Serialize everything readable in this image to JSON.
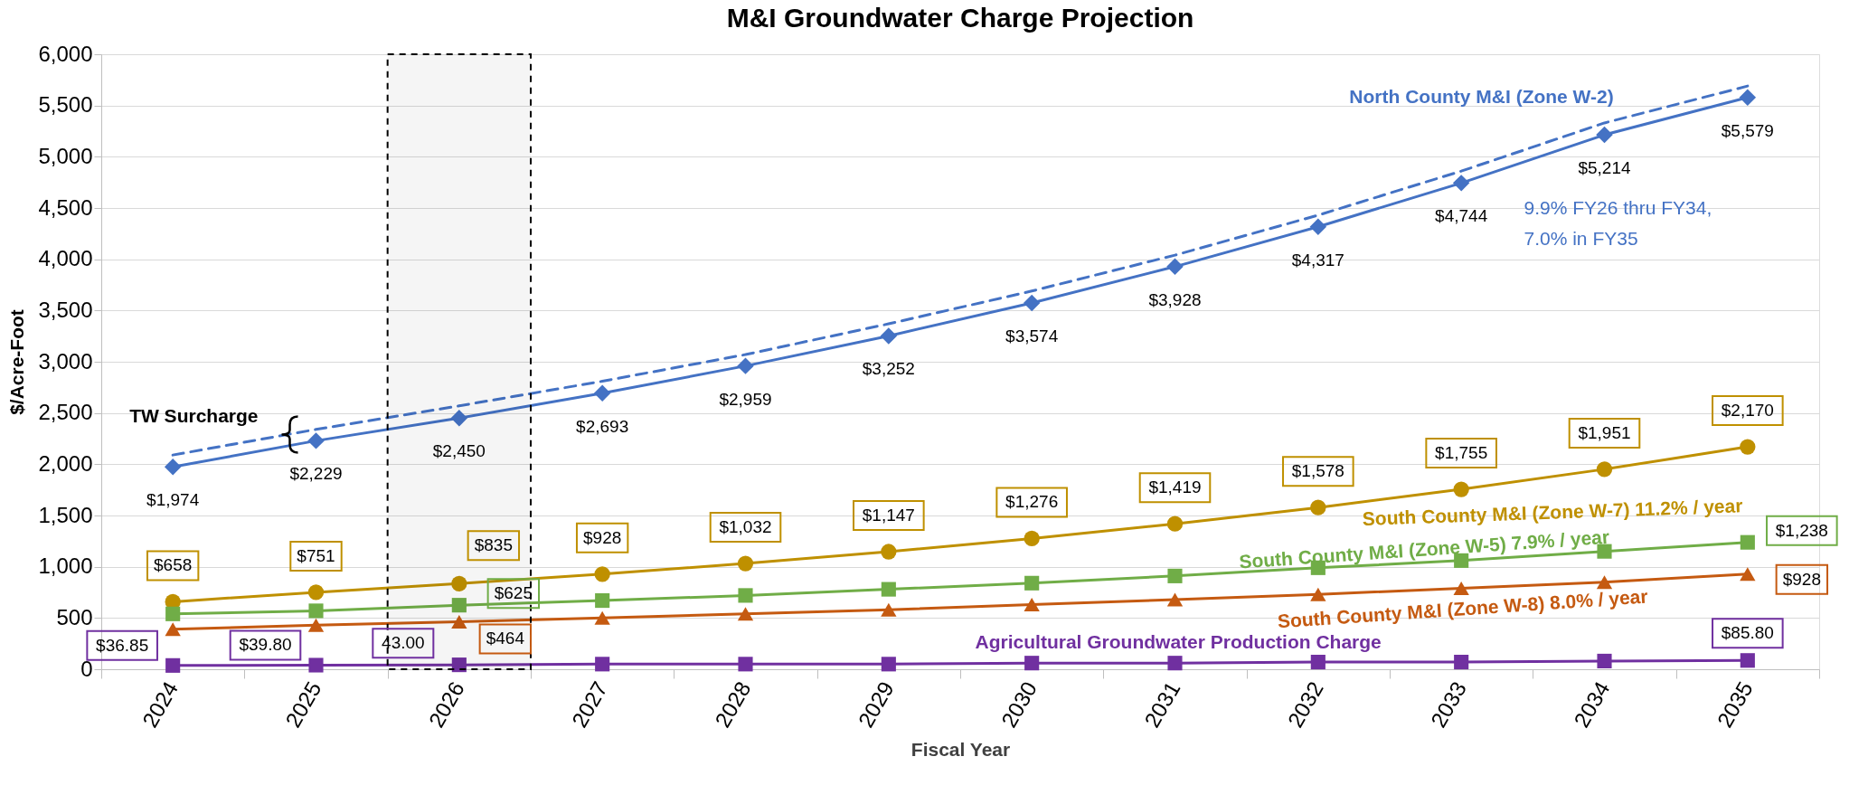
{
  "chart_data": {
    "type": "line",
    "title": "M&I Groundwater Charge Projection",
    "xlabel": "Fiscal Year",
    "ylabel": "$/Acre-Foot",
    "categories": [
      "2024",
      "2025",
      "2026",
      "2027",
      "2028",
      "2029",
      "2030",
      "2031",
      "2032",
      "2033",
      "2034",
      "2035"
    ],
    "ylim": [
      0,
      6000
    ],
    "yticks": [
      0,
      500,
      {
        "value": 1000,
        "label": "1,000"
      },
      {
        "value": 1500,
        "label": "1,500"
      },
      {
        "value": 2000,
        "label": "2,000"
      },
      {
        "value": 2500,
        "label": "2,500"
      },
      {
        "value": 3000,
        "label": "3,000"
      },
      {
        "value": 3500,
        "label": "3,500"
      },
      {
        "value": 4000,
        "label": "4,000"
      },
      {
        "value": 4500,
        "label": "4,500"
      },
      {
        "value": 5000,
        "label": "5,000"
      },
      {
        "value": 5500,
        "label": "5,500"
      },
      {
        "value": 6000,
        "label": "6,000"
      }
    ],
    "grid": "y",
    "legend": false,
    "series": [
      {
        "name": "North County M&I (Zone W-2)",
        "color": "#4472c4",
        "marker": "diamond",
        "values": [
          1974,
          2229,
          2450,
          2693,
          2959,
          3252,
          3574,
          3928,
          4317,
          4744,
          5214,
          5579
        ],
        "value_labels": [
          "$1,974",
          "$2,229",
          "$2,450",
          "$2,693",
          "$2,959",
          "$3,252",
          "$3,574",
          "$3,928",
          "$4,317",
          "$4,744",
          "$5,214",
          "$5,579"
        ]
      },
      {
        "color": "#4472c4",
        "marker": "none",
        "line_style": "dashed",
        "values": [
          2090,
          2340,
          2570,
          2810,
          3070,
          3370,
          3690,
          4040,
          4430,
          4860,
          5330,
          5690
        ]
      },
      {
        "name": "South County M&I (Zone W-7) 11.2% / year",
        "color": "#bf9000",
        "marker": "circle",
        "values": [
          658,
          751,
          835,
          928,
          1032,
          1147,
          1276,
          1419,
          1578,
          1755,
          1951,
          2170
        ],
        "value_labels": [
          "$658",
          "$751",
          "$835",
          "$928",
          "$1,032",
          "$1,147",
          "$1,276",
          "$1,419",
          "$1,578",
          "$1,755",
          "$1,951",
          "$2,170"
        ]
      },
      {
        "name": "South County M&I (Zone W-5) 7.9% / year",
        "color": "#70ad47",
        "marker": "square",
        "values": [
          540,
          570,
          625,
          670,
          720,
          780,
          840,
          910,
          990,
          1060,
          1150,
          1238
        ],
        "value_labels": [
          null,
          null,
          "$625",
          null,
          null,
          null,
          null,
          null,
          null,
          null,
          null,
          "$1,238"
        ]
      },
      {
        "name": "South County M&I (Zone W-8) 8.0% / year",
        "color": "#c55a11",
        "marker": "triangle",
        "values": [
          390,
          430,
          464,
          500,
          540,
          580,
          630,
          680,
          730,
          790,
          850,
          928
        ],
        "value_labels": [
          null,
          null,
          "$464",
          null,
          null,
          null,
          null,
          null,
          null,
          null,
          null,
          "$928"
        ]
      },
      {
        "name": "Agricultural Groundwater Production Charge",
        "color": "#7030a0",
        "marker": "square",
        "values": [
          36.85,
          39.8,
          43.0,
          50,
          50,
          50,
          60,
          60,
          70,
          70,
          80,
          85.8
        ],
        "value_labels": [
          "$36.85",
          "$39.80",
          "43.00",
          null,
          null,
          null,
          null,
          null,
          null,
          null,
          null,
          "$85.80"
        ]
      }
    ],
    "annotations": [
      {
        "text": "TW Surcharge",
        "x": "2025",
        "y": 2290
      },
      "9.9% FY26 thru FY34,\n7.0% in FY35"
    ],
    "bands": [
      {
        "axis": "x",
        "from": "2026",
        "to": "2026",
        "color": "#000000"
      }
    ]
  }
}
